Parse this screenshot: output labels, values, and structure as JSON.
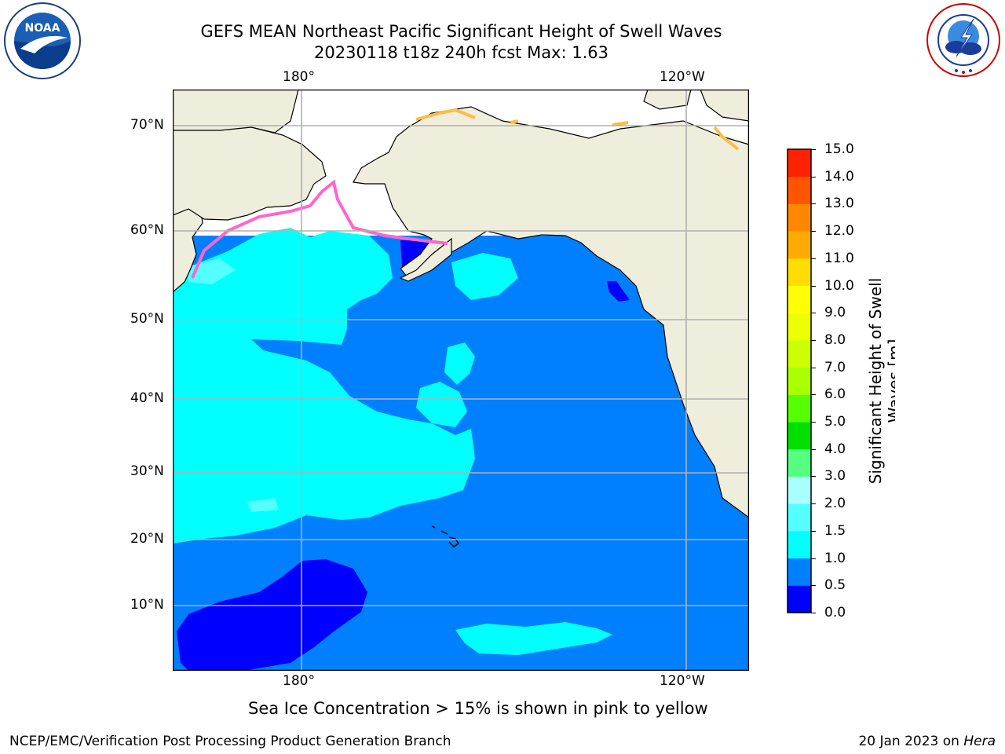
{
  "header": {
    "title_line1": "GEFS MEAN Northeast Pacific Significant Height of Swell Waves",
    "title_line2": "20230118 t18z 240h fcst   Max: 1.63"
  },
  "logos": {
    "noaa_text": "NOAA",
    "noaa_ring": "NATIONAL OCEANIC AND ATMOSPHERIC ADMINISTRATION · U.S. DEPARTMENT OF COMMERCE ·",
    "nws_ring": "NATIONAL WEATHER SERVICE"
  },
  "map": {
    "lon_labels_top": [
      "180°",
      "120°W"
    ],
    "lon_labels_bottom": [
      "180°",
      "120°W"
    ],
    "lat_labels": [
      "70°N",
      "60°N",
      "50°N",
      "40°N",
      "30°N",
      "20°N",
      "10°N"
    ],
    "note": "Sea Ice Concentration > 15% is shown in pink to yellow",
    "colors": {
      "land": "#efeddc",
      "ice_free_white": "#ffffff",
      "band_0_0_5": "#0000ff",
      "band_0_5_1_0": "#0080ff",
      "band_1_0_1_5": "#00ffff",
      "band_1_5_2_0": "#55ffff",
      "ice_edge": "#ff66cc"
    }
  },
  "colorbar": {
    "label": "Significant Height of Swell Waves [m]",
    "label_line1": "Significant Height of Swell",
    "label_line2": "Waves [m]",
    "ticks": [
      "15.0",
      "14.0",
      "13.0",
      "12.0",
      "11.0",
      "10.0",
      "9.0",
      "8.0",
      "7.0",
      "6.0",
      "5.0",
      "4.0",
      "3.0",
      "2.0",
      "1.5",
      "1.0",
      "0.5",
      "0.0"
    ],
    "colors_bottom_to_top": [
      "#0000ff",
      "#0080ff",
      "#00ffff",
      "#55ffff",
      "#aaffff",
      "#55ff80",
      "#00e000",
      "#55ff00",
      "#aaff00",
      "#ccff00",
      "#eeff00",
      "#ffff00",
      "#ffdd00",
      "#ffaa00",
      "#ff8800",
      "#ff5500",
      "#ff2200"
    ]
  },
  "footer": {
    "left": "NCEP/EMC/Verification Post Processing Product Generation Branch",
    "right_date": "20 Jan 2023 on ",
    "right_machine": "Hera"
  }
}
